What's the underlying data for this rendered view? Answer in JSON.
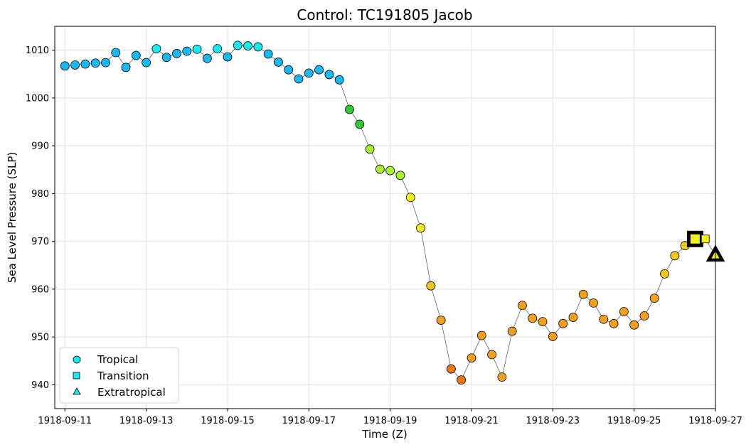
{
  "chart_data": {
    "type": "scatter",
    "title": "Control: TC191805 Jacob",
    "xlabel": "Time (Z)",
    "ylabel": "Sea Level Pressure (SLP)",
    "x_ticks": [
      "1918-09-11",
      "1918-09-13",
      "1918-09-15",
      "1918-09-17",
      "1918-09-19",
      "1918-09-21",
      "1918-09-23",
      "1918-09-25",
      "1918-09-27"
    ],
    "y_ticks": [
      940,
      950,
      960,
      970,
      980,
      990,
      1000,
      1010
    ],
    "xlim": [
      "1918-09-10 18:00",
      "1918-09-27 00:00"
    ],
    "ylim": [
      935,
      1015
    ],
    "grid": true,
    "legend_position": "lower-left",
    "legend": [
      {
        "label": "Tropical",
        "marker": "circle"
      },
      {
        "label": "Transition",
        "marker": "square"
      },
      {
        "label": "Extratropical",
        "marker": "triangle"
      }
    ],
    "series": [
      {
        "marker": "circle",
        "points": [
          {
            "t": "1918-09-11 00:00",
            "slp": 1006.7,
            "color": "#1ab8f0"
          },
          {
            "t": "1918-09-11 06:00",
            "slp": 1006.9,
            "color": "#1ab8f0"
          },
          {
            "t": "1918-09-11 12:00",
            "slp": 1007.1,
            "color": "#1ab8f0"
          },
          {
            "t": "1918-09-11 18:00",
            "slp": 1007.3,
            "color": "#1ab8f0"
          },
          {
            "t": "1918-09-12 00:00",
            "slp": 1007.4,
            "color": "#1ab8f0"
          },
          {
            "t": "1918-09-12 06:00",
            "slp": 1009.5,
            "color": "#1ab8f0"
          },
          {
            "t": "1918-09-12 12:00",
            "slp": 1006.4,
            "color": "#1ab8f0"
          },
          {
            "t": "1918-09-12 18:00",
            "slp": 1008.9,
            "color": "#1ab8f0"
          },
          {
            "t": "1918-09-13 00:00",
            "slp": 1007.4,
            "color": "#1ab8f0"
          },
          {
            "t": "1918-09-13 06:00",
            "slp": 1010.3,
            "color": "#1ae8f0"
          },
          {
            "t": "1918-09-13 12:00",
            "slp": 1008.5,
            "color": "#1ab8f0"
          },
          {
            "t": "1918-09-13 18:00",
            "slp": 1009.3,
            "color": "#1ab8f0"
          },
          {
            "t": "1918-09-14 00:00",
            "slp": 1009.8,
            "color": "#1ab8f0"
          },
          {
            "t": "1918-09-14 06:00",
            "slp": 1010.2,
            "color": "#1ae8f0"
          },
          {
            "t": "1918-09-14 12:00",
            "slp": 1008.3,
            "color": "#1ab8f0"
          },
          {
            "t": "1918-09-14 18:00",
            "slp": 1010.3,
            "color": "#1ae8f0"
          },
          {
            "t": "1918-09-15 00:00",
            "slp": 1008.6,
            "color": "#1ab8f0"
          },
          {
            "t": "1918-09-15 06:00",
            "slp": 1011.0,
            "color": "#1ae8f0"
          },
          {
            "t": "1918-09-15 12:00",
            "slp": 1010.9,
            "color": "#1ae8f0"
          },
          {
            "t": "1918-09-15 18:00",
            "slp": 1010.7,
            "color": "#1ae8f0"
          },
          {
            "t": "1918-09-16 00:00",
            "slp": 1009.2,
            "color": "#1ab8f0"
          },
          {
            "t": "1918-09-16 06:00",
            "slp": 1007.5,
            "color": "#1ab8f0"
          },
          {
            "t": "1918-09-16 12:00",
            "slp": 1005.9,
            "color": "#1ab8f0"
          },
          {
            "t": "1918-09-16 18:00",
            "slp": 1004.0,
            "color": "#1ab8f0"
          },
          {
            "t": "1918-09-17 00:00",
            "slp": 1005.2,
            "color": "#1ab8f0"
          },
          {
            "t": "1918-09-17 06:00",
            "slp": 1005.9,
            "color": "#1ab8f0"
          },
          {
            "t": "1918-09-17 12:00",
            "slp": 1004.9,
            "color": "#1ab8f0"
          },
          {
            "t": "1918-09-17 18:00",
            "slp": 1003.8,
            "color": "#1ab8f0"
          },
          {
            "t": "1918-09-18 00:00",
            "slp": 997.6,
            "color": "#32c832"
          },
          {
            "t": "1918-09-18 06:00",
            "slp": 994.5,
            "color": "#32c832"
          },
          {
            "t": "1918-09-18 12:00",
            "slp": 989.3,
            "color": "#a8f032"
          },
          {
            "t": "1918-09-18 18:00",
            "slp": 985.1,
            "color": "#a8f032"
          },
          {
            "t": "1918-09-19 00:00",
            "slp": 984.8,
            "color": "#a8f032"
          },
          {
            "t": "1918-09-19 06:00",
            "slp": 983.8,
            "color": "#a8f032"
          },
          {
            "t": "1918-09-19 12:00",
            "slp": 979.2,
            "color": "#f0f01e"
          },
          {
            "t": "1918-09-19 18:00",
            "slp": 972.8,
            "color": "#f0f01e"
          },
          {
            "t": "1918-09-20 00:00",
            "slp": 960.7,
            "color": "#f0c81e"
          },
          {
            "t": "1918-09-20 06:00",
            "slp": 953.5,
            "color": "#f0a01e"
          },
          {
            "t": "1918-09-20 12:00",
            "slp": 943.3,
            "color": "#f07814"
          },
          {
            "t": "1918-09-20 18:00",
            "slp": 941.0,
            "color": "#f07814"
          },
          {
            "t": "1918-09-21 00:00",
            "slp": 945.6,
            "color": "#f0a01e"
          },
          {
            "t": "1918-09-21 06:00",
            "slp": 950.3,
            "color": "#f0a01e"
          },
          {
            "t": "1918-09-21 12:00",
            "slp": 946.3,
            "color": "#f0a01e"
          },
          {
            "t": "1918-09-21 18:00",
            "slp": 941.6,
            "color": "#f0a01e"
          },
          {
            "t": "1918-09-22 00:00",
            "slp": 951.2,
            "color": "#f0a01e"
          },
          {
            "t": "1918-09-22 06:00",
            "slp": 956.6,
            "color": "#f0a01e"
          },
          {
            "t": "1918-09-22 12:00",
            "slp": 953.9,
            "color": "#f0a01e"
          },
          {
            "t": "1918-09-22 18:00",
            "slp": 953.2,
            "color": "#f0a01e"
          },
          {
            "t": "1918-09-23 00:00",
            "slp": 950.1,
            "color": "#f0a01e"
          },
          {
            "t": "1918-09-23 06:00",
            "slp": 952.8,
            "color": "#f0a01e"
          },
          {
            "t": "1918-09-23 12:00",
            "slp": 954.1,
            "color": "#f0a01e"
          },
          {
            "t": "1918-09-23 18:00",
            "slp": 958.9,
            "color": "#f0a01e"
          },
          {
            "t": "1918-09-24 00:00",
            "slp": 957.1,
            "color": "#f0a01e"
          },
          {
            "t": "1918-09-24 06:00",
            "slp": 953.7,
            "color": "#f0a01e"
          },
          {
            "t": "1918-09-24 12:00",
            "slp": 952.8,
            "color": "#f0a01e"
          },
          {
            "t": "1918-09-24 18:00",
            "slp": 955.3,
            "color": "#f0a01e"
          },
          {
            "t": "1918-09-25 00:00",
            "slp": 952.5,
            "color": "#f0a01e"
          },
          {
            "t": "1918-09-25 06:00",
            "slp": 954.4,
            "color": "#f0a01e"
          },
          {
            "t": "1918-09-25 12:00",
            "slp": 958.1,
            "color": "#f0a01e"
          },
          {
            "t": "1918-09-25 18:00",
            "slp": 963.2,
            "color": "#f0c81e"
          },
          {
            "t": "1918-09-26 00:00",
            "slp": 967.0,
            "color": "#f0c81e"
          },
          {
            "t": "1918-09-26 06:00",
            "slp": 969.1,
            "color": "#f0c81e"
          }
        ]
      },
      {
        "marker": "square",
        "points": [
          {
            "t": "1918-09-26 12:00",
            "slp": 970.5,
            "color": "#f0f01e",
            "highlight": true
          },
          {
            "t": "1918-09-26 18:00",
            "slp": 970.5,
            "color": "#f0f01e"
          }
        ]
      },
      {
        "marker": "triangle",
        "points": [
          {
            "t": "1918-09-27 00:00",
            "slp": 967.1,
            "color": "#f0f01e",
            "highlight": true
          }
        ]
      }
    ]
  }
}
